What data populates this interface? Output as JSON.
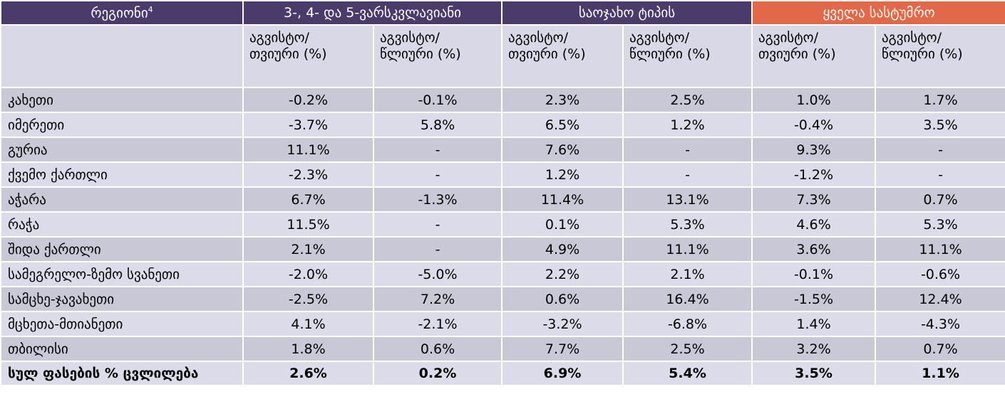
{
  "header": {
    "region": "რეგიონი",
    "region_sup": "4",
    "groups": [
      "3-, 4- და 5-ვარსკვლავიანი",
      "საოჯახო ტიპის",
      "ყველა სასტუმრო"
    ],
    "accent_color": "#e2684a",
    "header_color": "#4b3b6a",
    "subheaders": [
      {
        "line1": "აგვისტო/",
        "line2": "თვიური (%)"
      },
      {
        "line1": "აგვისტო/",
        "line2": "წლიური (%)"
      },
      {
        "line1": "აგვისტო/",
        "line2": "თვიური (%)"
      },
      {
        "line1": "აგვისტო/",
        "line2": "წლიური (%)"
      },
      {
        "line1": "აგვისტო/",
        "line2": "თვიური (%)"
      },
      {
        "line1": "აგვისტო/",
        "line2": "წლიური (%)"
      }
    ]
  },
  "rows": [
    {
      "region": "კახეთი",
      "values": [
        "-0.2%",
        "-0.1%",
        "2.3%",
        "2.5%",
        "1.0%",
        "1.7%"
      ]
    },
    {
      "region": "იმერეთი",
      "values": [
        "-3.7%",
        "5.8%",
        "6.5%",
        "1.2%",
        "-0.4%",
        "3.5%"
      ]
    },
    {
      "region": "გურია",
      "values": [
        "11.1%",
        "-",
        "7.6%",
        "-",
        "9.3%",
        "-"
      ]
    },
    {
      "region": "ქვემო ქართლი",
      "values": [
        "-2.3%",
        "-",
        "1.2%",
        "-",
        "-1.2%",
        "-"
      ]
    },
    {
      "region": "აჭარა",
      "values": [
        "6.7%",
        "-1.3%",
        "11.4%",
        "13.1%",
        "7.3%",
        "0.7%"
      ]
    },
    {
      "region": "რაჭა",
      "values": [
        "11.5%",
        "-",
        "0.1%",
        "5.3%",
        "4.6%",
        "5.3%"
      ]
    },
    {
      "region": "შიდა ქართლი",
      "values": [
        "2.1%",
        "-",
        "4.9%",
        "11.1%",
        "3.6%",
        "11.1%"
      ]
    },
    {
      "region": "სამეგრელო-ზემო სვანეთი",
      "values": [
        "-2.0%",
        "-5.0%",
        "2.2%",
        "2.1%",
        "-0.1%",
        "-0.6%"
      ]
    },
    {
      "region": "სამცხე-ჯავახეთი",
      "values": [
        "-2.5%",
        "7.2%",
        "0.6%",
        "16.4%",
        "-1.5%",
        "12.4%"
      ]
    },
    {
      "region": "მცხეთა-მთიანეთი",
      "values": [
        "4.1%",
        "-2.1%",
        "-3.2%",
        "-6.8%",
        "1.4%",
        "-4.3%"
      ]
    },
    {
      "region": "თბილისი",
      "values": [
        "1.8%",
        "0.6%",
        "7.7%",
        "2.5%",
        "3.2%",
        "0.7%"
      ]
    }
  ],
  "total": {
    "label": "სულ ფასების % ცვლილება",
    "values": [
      "2.6%",
      "0.2%",
      "6.9%",
      "5.4%",
      "3.5%",
      "1.1%"
    ]
  }
}
